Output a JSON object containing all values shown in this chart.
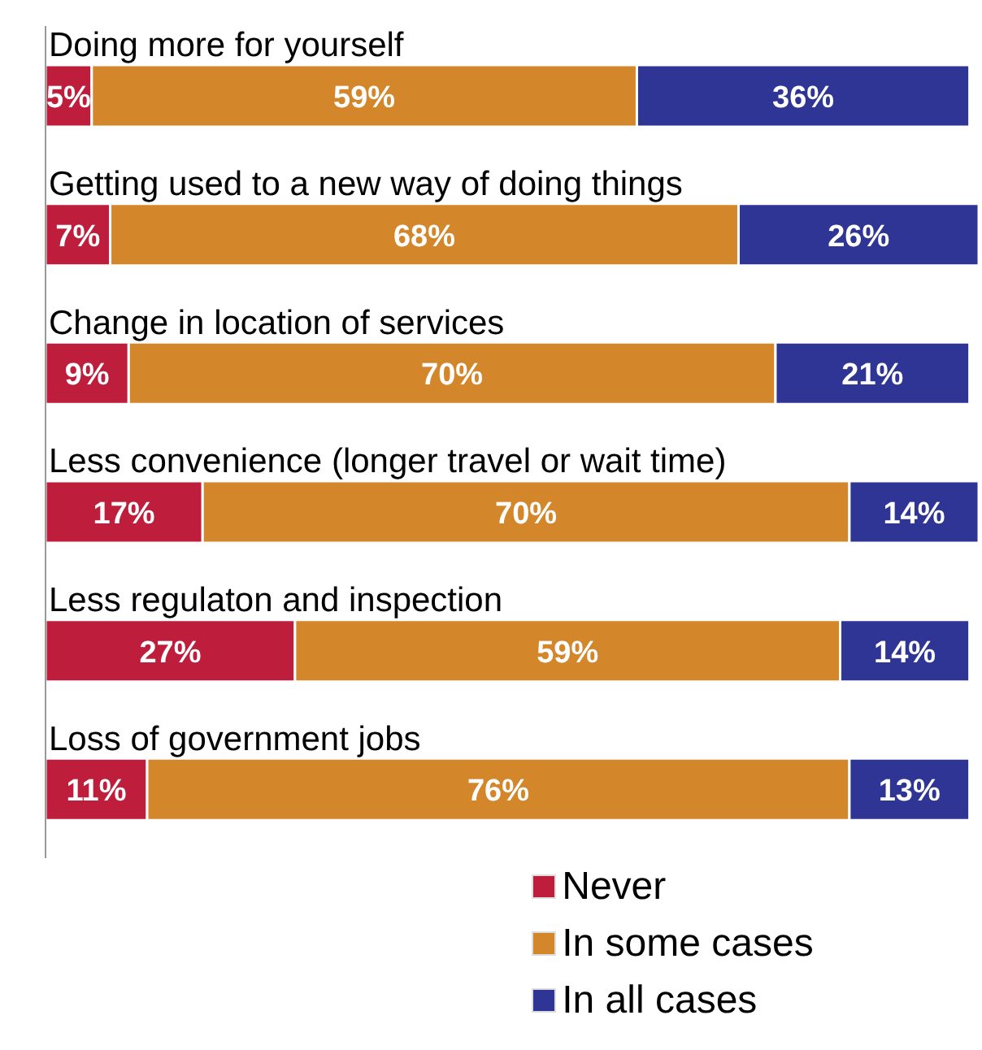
{
  "chart_data": {
    "type": "bar",
    "orientation": "horizontal",
    "stacked": true,
    "legend": "bottom",
    "categories": [
      "Doing more for yourself",
      "Getting used to a new way of doing things",
      "Change in location of services",
      "Less convenience (longer travel or wait time)",
      "Less regulaton and inspection",
      "Loss of government jobs"
    ],
    "series": [
      {
        "name": "Never",
        "color": "#be1e3c",
        "values": [
          5,
          7,
          9,
          17,
          27,
          11
        ],
        "value_labels": [
          "5%",
          "7%",
          "9%",
          "17%",
          "27%",
          "11%"
        ]
      },
      {
        "name": "In some cases",
        "color": "#d4862b",
        "values": [
          59,
          68,
          70,
          70,
          59,
          76
        ],
        "value_labels": [
          "59%",
          "68%",
          "70%",
          "70%",
          "59%",
          "76%"
        ]
      },
      {
        "name": "In all cases",
        "color": "#2e3594",
        "values": [
          36,
          26,
          21,
          14,
          14,
          13
        ],
        "value_labels": [
          "36%",
          "26%",
          "21%",
          "14%",
          "14%",
          "13%"
        ]
      }
    ]
  }
}
